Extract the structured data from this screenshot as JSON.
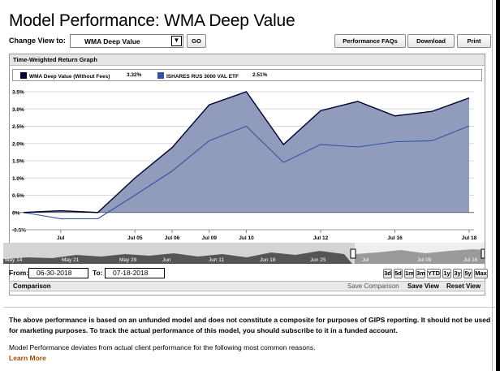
{
  "page": {
    "title_bold": "Model Performance:",
    "title_light": "WMA Deep Value"
  },
  "controls": {
    "change_view_label": "Change View to:",
    "selected_model": "WMA Deep Value",
    "go_label": "GO",
    "faqs_label": "Performance FAQs",
    "download_label": "Download",
    "print_label": "Print"
  },
  "graph": {
    "header": "Time-Weighted Return Graph",
    "legend": [
      {
        "name": "WMA Deep Value (Without Fees)",
        "value": "3.32%",
        "color": "#000033"
      },
      {
        "name": "ISHARES RUS 3000 VAL ETF",
        "value": "2.51%",
        "color": "#3355a0"
      }
    ]
  },
  "chart_data": {
    "type": "area",
    "x": [
      "Jun 30",
      "Jul 2",
      "Jul 3",
      "Jul 5",
      "Jul 6",
      "Jul 9",
      "Jul 10",
      "Jul 11",
      "Jul 12",
      "Jul 13",
      "Jul 16",
      "Jul 17",
      "Jul 18"
    ],
    "x_tick_labels": [
      "Jul",
      "Jul 05",
      "Jul 06",
      "Jul 09",
      "Jul 10",
      "Jul 12",
      "Jul 16",
      "Jul 18"
    ],
    "y_tick_labels": [
      "-0.5%",
      "0%",
      "0.5%",
      "1.0%",
      "1.5%",
      "2.0%",
      "2.5%",
      "3.0%",
      "3.5%"
    ],
    "ylim": [
      -0.5,
      3.5
    ],
    "series": [
      {
        "name": "WMA Deep Value (Without Fees)",
        "values": [
          0.0,
          0.05,
          0.0,
          1.0,
          1.88,
          3.12,
          3.5,
          1.97,
          2.95,
          3.22,
          2.8,
          2.93,
          3.32
        ],
        "color": "#000033",
        "fill": "#8b96b8"
      },
      {
        "name": "ISHARES RUS 3000 VAL ETF",
        "values": [
          0.0,
          -0.18,
          -0.18,
          0.5,
          1.2,
          2.08,
          2.5,
          1.45,
          1.97,
          1.9,
          2.05,
          2.08,
          2.51
        ],
        "color": "#3355a0"
      }
    ],
    "grid": true,
    "legend": "top"
  },
  "navigator": {
    "labels": [
      "May 14",
      "May 21",
      "May 29",
      "Jun",
      "Jun 11",
      "Jun 18",
      "Jun 25",
      "Jul",
      "Jul 09",
      "Jul 16"
    ]
  },
  "dates": {
    "from_label": "From:",
    "from_value": "06-30-2018",
    "to_label": "To:",
    "to_value": "07-18-2018",
    "ranges": [
      "3d",
      "5d",
      "1m",
      "3m",
      "YTD",
      "1y",
      "3y",
      "5y",
      "Max"
    ]
  },
  "comparison": {
    "label": "Comparison",
    "save_comparison": "Save Comparison",
    "save_view": "Save View",
    "reset_view": "Reset View"
  },
  "disclaimer": {
    "p1": "The above performance is based on an unfunded model and does not constitute a composite for purposes of GIPS reporting. It should not be used for marketing purposes. To track the actual performance of this model, you should subscribe to it in a funded account.",
    "p2": "Model Performance deviates from actual client performance for the following most common reasons.",
    "learn_more": "Learn More"
  }
}
